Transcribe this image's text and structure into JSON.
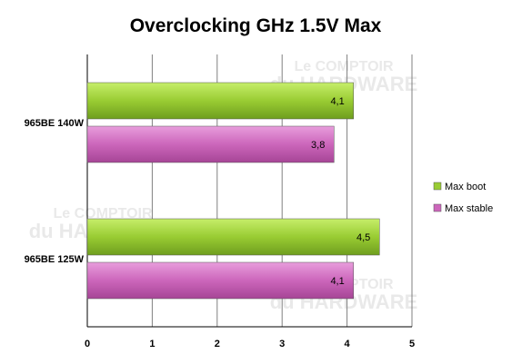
{
  "chart_data": {
    "type": "bar",
    "orientation": "horizontal",
    "title": "Overclocking GHz 1.5V Max",
    "categories": [
      "965BE 140W",
      "965BE 125W"
    ],
    "series": [
      {
        "name": "Max boot",
        "values": [
          4.1,
          4.5
        ],
        "labels": [
          "4,1",
          "4,5"
        ],
        "color": "#99cc33"
      },
      {
        "name": "Max stable",
        "values": [
          3.8,
          4.1
        ],
        "labels": [
          "3,8",
          "4,1"
        ],
        "color": "#cc66bb"
      }
    ],
    "xlim": [
      0,
      5
    ],
    "xticks": [
      "0",
      "1",
      "2",
      "3",
      "4",
      "5"
    ],
    "grid": true,
    "legend_position": "right"
  },
  "watermark": {
    "line1": "Le COMPTOIR",
    "line2": "du HARDWARE"
  }
}
